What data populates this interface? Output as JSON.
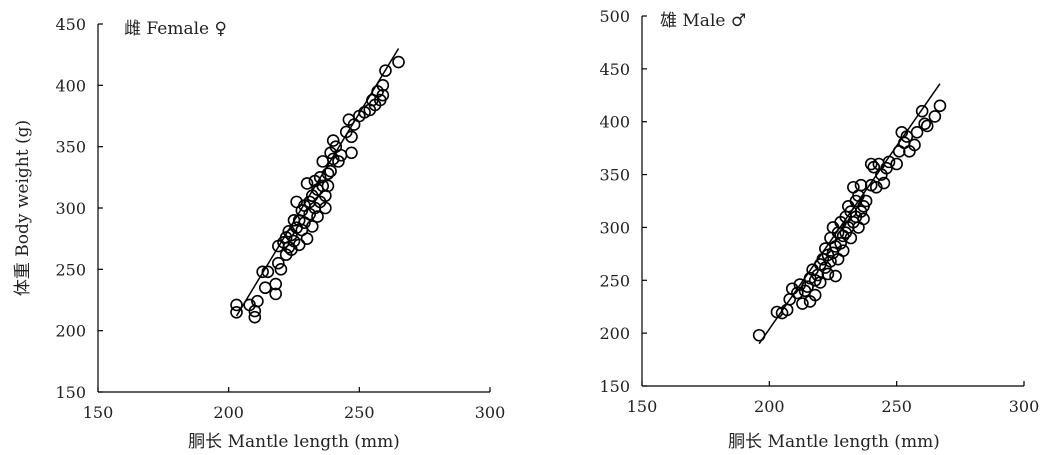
{
  "chart_data": [
    {
      "type": "scatter",
      "title": "雌 Female ♀",
      "xlabel": "胴长 Mantle length (mm)",
      "ylabel": "体重 Body weight (g)",
      "xlim": [
        150,
        300
      ],
      "ylim": [
        150,
        450
      ],
      "xticks": [
        "150",
        "200",
        "250",
        "300"
      ],
      "yticks": [
        "150",
        "200",
        "250",
        "300",
        "350",
        "400",
        "450"
      ],
      "grid": false,
      "marker": "open-circle",
      "points": [
        [
          203,
          221
        ],
        [
          203,
          215
        ],
        [
          208,
          221
        ],
        [
          210,
          216
        ],
        [
          210,
          211
        ],
        [
          211,
          224
        ],
        [
          213,
          248
        ],
        [
          214,
          235
        ],
        [
          215,
          248
        ],
        [
          218,
          230
        ],
        [
          218,
          238
        ],
        [
          219,
          255
        ],
        [
          219,
          269
        ],
        [
          220,
          250
        ],
        [
          221,
          272
        ],
        [
          222,
          276
        ],
        [
          222,
          262
        ],
        [
          223,
          268
        ],
        [
          223,
          281
        ],
        [
          224,
          278
        ],
        [
          224,
          266
        ],
        [
          225,
          290
        ],
        [
          225,
          273
        ],
        [
          226,
          284
        ],
        [
          226,
          305
        ],
        [
          227,
          290
        ],
        [
          227,
          270
        ],
        [
          228,
          298
        ],
        [
          228,
          282
        ],
        [
          229,
          288
        ],
        [
          229,
          302
        ],
        [
          230,
          275
        ],
        [
          230,
          320
        ],
        [
          231,
          305
        ],
        [
          231,
          295
        ],
        [
          232,
          310
        ],
        [
          232,
          285
        ],
        [
          233,
          300
        ],
        [
          233,
          322
        ],
        [
          234,
          315
        ],
        [
          234,
          293
        ],
        [
          235,
          325
        ],
        [
          235,
          305
        ],
        [
          236,
          318
        ],
        [
          236,
          338
        ],
        [
          237,
          310
        ],
        [
          237,
          300
        ],
        [
          238,
          328
        ],
        [
          238,
          318
        ],
        [
          239,
          345
        ],
        [
          239,
          330
        ],
        [
          240,
          340
        ],
        [
          240,
          355
        ],
        [
          241,
          350
        ],
        [
          242,
          338
        ],
        [
          243,
          343
        ],
        [
          245,
          362
        ],
        [
          246,
          372
        ],
        [
          247,
          358
        ],
        [
          247,
          345
        ],
        [
          248,
          368
        ],
        [
          250,
          375
        ],
        [
          252,
          378
        ],
        [
          254,
          380
        ],
        [
          255,
          388
        ],
        [
          256,
          384
        ],
        [
          257,
          395
        ],
        [
          258,
          388
        ],
        [
          259,
          392
        ],
        [
          259,
          400
        ],
        [
          260,
          412
        ],
        [
          265,
          419
        ]
      ],
      "fit_line": [
        [
          203,
          212
        ],
        [
          265,
          430
        ]
      ]
    },
    {
      "type": "scatter",
      "title": "雄 Male ♂",
      "xlabel": "胴长 Mantle length (mm)",
      "ylabel": "",
      "xlim": [
        150,
        300
      ],
      "ylim": [
        150,
        500
      ],
      "xticks": [
        "150",
        "200",
        "250",
        "300"
      ],
      "yticks": [
        "150",
        "200",
        "250",
        "300",
        "350",
        "400",
        "450",
        "500"
      ],
      "grid": false,
      "marker": "open-circle",
      "points": [
        [
          196,
          198
        ],
        [
          203,
          220
        ],
        [
          205,
          219
        ],
        [
          207,
          222
        ],
        [
          208,
          232
        ],
        [
          209,
          242
        ],
        [
          211,
          238
        ],
        [
          212,
          246
        ],
        [
          213,
          228
        ],
        [
          214,
          240
        ],
        [
          215,
          244
        ],
        [
          216,
          252
        ],
        [
          216,
          230
        ],
        [
          217,
          260
        ],
        [
          218,
          236
        ],
        [
          218,
          250
        ],
        [
          219,
          255
        ],
        [
          220,
          265
        ],
        [
          220,
          248
        ],
        [
          221,
          270
        ],
        [
          222,
          262
        ],
        [
          222,
          280
        ],
        [
          223,
          274
        ],
        [
          223,
          256
        ],
        [
          224,
          290
        ],
        [
          224,
          268
        ],
        [
          225,
          300
        ],
        [
          225,
          276
        ],
        [
          226,
          282
        ],
        [
          226,
          254
        ],
        [
          227,
          295
        ],
        [
          227,
          270
        ],
        [
          228,
          305
        ],
        [
          228,
          285
        ],
        [
          229,
          292
        ],
        [
          229,
          278
        ],
        [
          230,
          310
        ],
        [
          230,
          295
        ],
        [
          231,
          300
        ],
        [
          231,
          320
        ],
        [
          232,
          315
        ],
        [
          232,
          290
        ],
        [
          233,
          338
        ],
        [
          233,
          305
        ],
        [
          234,
          325
        ],
        [
          234,
          310
        ],
        [
          235,
          330
        ],
        [
          235,
          300
        ],
        [
          236,
          315
        ],
        [
          236,
          340
        ],
        [
          237,
          320
        ],
        [
          237,
          308
        ],
        [
          238,
          325
        ],
        [
          240,
          340
        ],
        [
          240,
          360
        ],
        [
          241,
          357
        ],
        [
          242,
          338
        ],
        [
          243,
          360
        ],
        [
          244,
          350
        ],
        [
          245,
          342
        ],
        [
          246,
          356
        ],
        [
          247,
          362
        ],
        [
          250,
          360
        ],
        [
          251,
          372
        ],
        [
          252,
          390
        ],
        [
          253,
          380
        ],
        [
          254,
          386
        ],
        [
          255,
          372
        ],
        [
          257,
          378
        ],
        [
          258,
          390
        ],
        [
          260,
          410
        ],
        [
          261,
          398
        ],
        [
          262,
          396
        ],
        [
          265,
          405
        ],
        [
          267,
          415
        ]
      ],
      "fit_line": [
        [
          196,
          190
        ],
        [
          267,
          436
        ]
      ]
    }
  ]
}
